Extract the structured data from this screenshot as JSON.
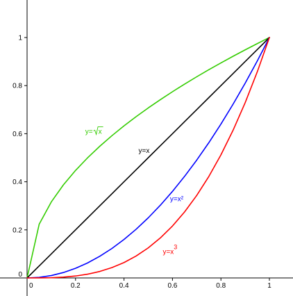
{
  "chart_data": {
    "type": "line",
    "title": "",
    "xlabel": "",
    "ylabel": "",
    "xlim": [
      -0.02,
      1.1
    ],
    "ylim": [
      -0.07,
      1.15
    ],
    "grid": false,
    "x_ticks": [
      {
        "value": 0,
        "label": "0"
      },
      {
        "value": 0.2,
        "label": "0.2"
      },
      {
        "value": 0.4,
        "label": "0.4"
      },
      {
        "value": 0.6,
        "label": "0.6"
      },
      {
        "value": 0.8,
        "label": "0.8"
      },
      {
        "value": 1,
        "label": "1"
      }
    ],
    "y_ticks": [
      {
        "value": 0,
        "label": "0"
      },
      {
        "value": 0.2,
        "label": "0.2"
      },
      {
        "value": 0.4,
        "label": "0.4"
      },
      {
        "value": 0.6,
        "label": "0.6"
      },
      {
        "value": 0.8,
        "label": "0.8"
      },
      {
        "value": 1,
        "label": "1"
      }
    ],
    "x": [
      0,
      0.05,
      0.1,
      0.15,
      0.2,
      0.25,
      0.3,
      0.35,
      0.4,
      0.45,
      0.5,
      0.55,
      0.6,
      0.65,
      0.7,
      0.75,
      0.8,
      0.85,
      0.9,
      0.95,
      1
    ],
    "series": [
      {
        "name": "y=√x",
        "label_prefix": "y=",
        "label_radicand": "x",
        "color": "#33cc00",
        "label_at": [
          0.24,
          0.6
        ],
        "values": [
          0,
          0.2236,
          0.3162,
          0.3873,
          0.4472,
          0.5,
          0.5477,
          0.5916,
          0.6325,
          0.6708,
          0.7071,
          0.7416,
          0.7746,
          0.8062,
          0.8367,
          0.866,
          0.8944,
          0.922,
          0.9487,
          0.9747,
          1
        ]
      },
      {
        "name": "y=x",
        "label_text": "y=x",
        "color": "#000000",
        "label_at": [
          0.46,
          0.52
        ],
        "values": [
          0,
          0.05,
          0.1,
          0.15,
          0.2,
          0.25,
          0.3,
          0.35,
          0.4,
          0.45,
          0.5,
          0.55,
          0.6,
          0.65,
          0.7,
          0.75,
          0.8,
          0.85,
          0.9,
          0.95,
          1
        ]
      },
      {
        "name": "y=x²",
        "label_text": "y=x²",
        "color": "#0000ff",
        "label_at": [
          0.59,
          0.32
        ],
        "values": [
          0,
          0.0025,
          0.01,
          0.0225,
          0.04,
          0.0625,
          0.09,
          0.1225,
          0.16,
          0.2025,
          0.25,
          0.3025,
          0.36,
          0.4225,
          0.49,
          0.5625,
          0.64,
          0.7225,
          0.81,
          0.9025,
          1
        ]
      },
      {
        "name": "y=x³",
        "label_prefix": "y=x",
        "label_sup": "3",
        "color": "#ff0000",
        "label_at": [
          0.56,
          0.1
        ],
        "values": [
          0,
          0.000125,
          0.001,
          0.003375,
          0.008,
          0.015625,
          0.027,
          0.042875,
          0.064,
          0.091125,
          0.125,
          0.166375,
          0.216,
          0.274625,
          0.343,
          0.421875,
          0.512,
          0.614125,
          0.729,
          0.857375,
          1
        ]
      }
    ]
  }
}
